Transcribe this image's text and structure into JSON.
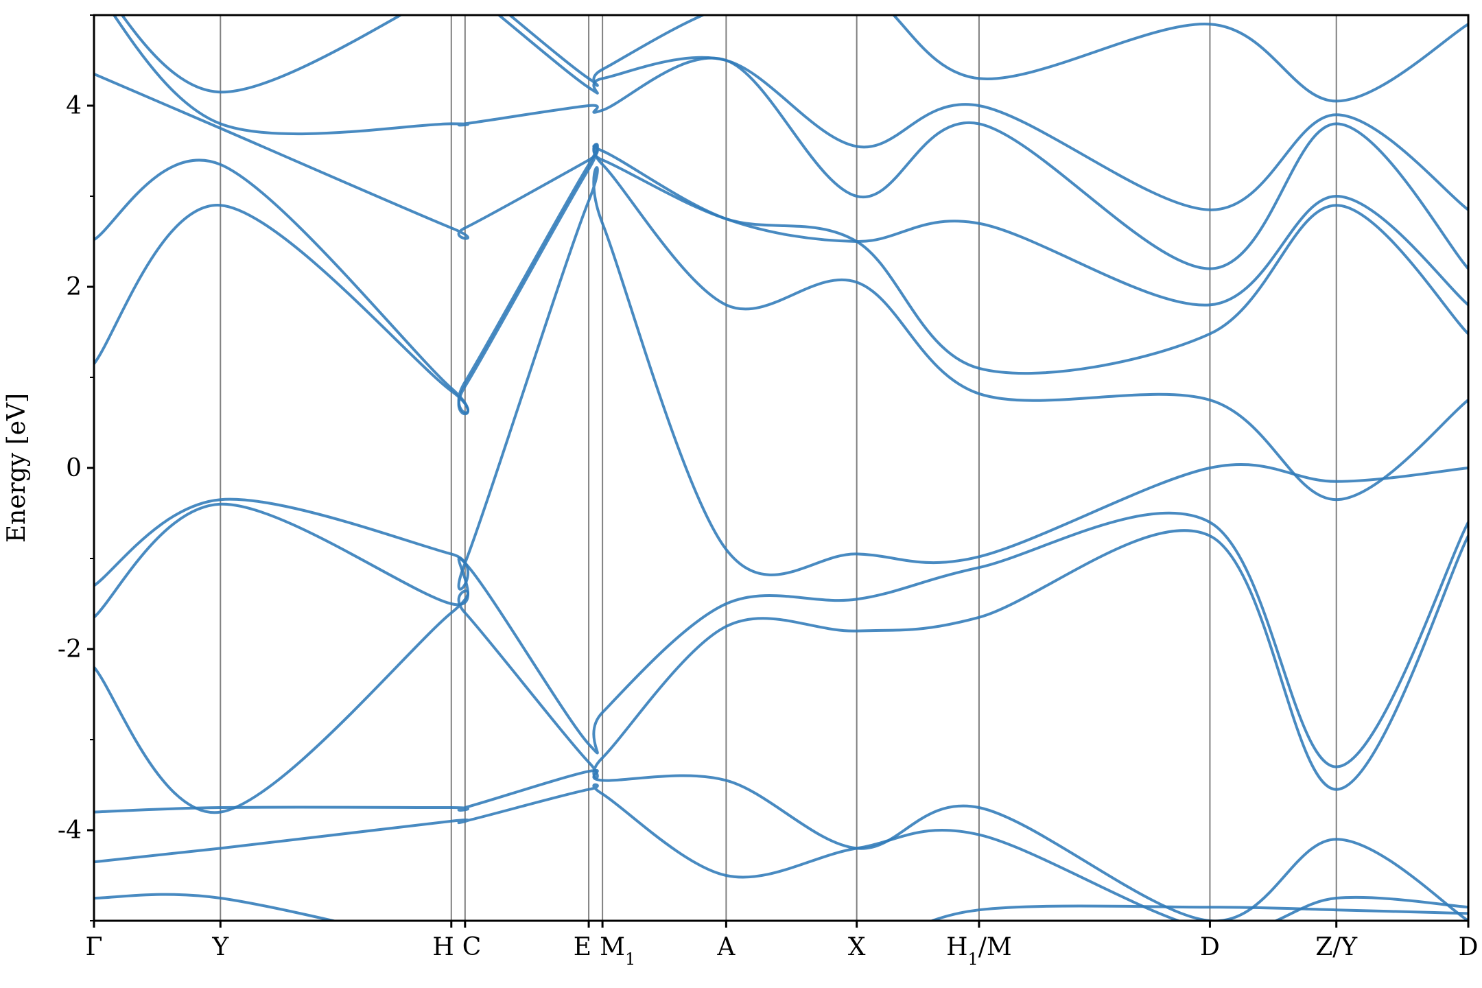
{
  "chart_data": {
    "type": "line",
    "title": "",
    "xlabel": "",
    "ylabel": "Energy [eV]",
    "ylim": [
      -5,
      5
    ],
    "yticks": [
      -4,
      -2,
      0,
      2,
      4
    ],
    "ytick_labels": [
      "-4",
      "-2",
      "0",
      "2",
      "4"
    ],
    "grid": false,
    "line_color": "#2f7ab8",
    "xlim": [
      0,
      10
    ],
    "high_symmetry_points": [
      {
        "label": "Γ",
        "x": 0.0,
        "align": "middle"
      },
      {
        "label": "Y",
        "x": 0.92,
        "align": "middle"
      },
      {
        "label": "H",
        "x": 2.6,
        "align": "end"
      },
      {
        "label": "C",
        "x": 2.7,
        "align": "start"
      },
      {
        "label": "E",
        "x": 3.6,
        "align": "end"
      },
      {
        "label": "M",
        "x": 3.7,
        "sub": "1",
        "align": "start"
      },
      {
        "label": "A",
        "x": 4.6,
        "align": "middle"
      },
      {
        "label": "X",
        "x": 5.55,
        "align": "middle"
      },
      {
        "label": "H",
        "x": 6.44,
        "sub": "1",
        "suffix": "/M",
        "align": "middle"
      },
      {
        "label": "D",
        "x": 8.12,
        "align": "middle"
      },
      {
        "label": "Z/Y",
        "x": 9.04,
        "align": "middle"
      },
      {
        "label": "D",
        "x": 10.0,
        "align": "middle"
      }
    ],
    "x": [
      0.0,
      0.92,
      2.6,
      2.7,
      3.6,
      3.7,
      4.6,
      5.55,
      6.44,
      8.12,
      9.04,
      10.0
    ],
    "series": [
      {
        "values": [
          -4.75,
          -4.75,
          -5.3,
          -5.3,
          -5.3,
          -5.3,
          -5.3,
          -5.3,
          -4.88,
          -4.85,
          -4.88,
          -4.92
        ]
      },
      {
        "values": [
          -4.35,
          -4.2,
          -3.9,
          -3.9,
          -3.55,
          -3.6,
          -4.5,
          -4.2,
          -4.05,
          -5.1,
          -4.75,
          -4.85
        ]
      },
      {
        "values": [
          -3.8,
          -3.75,
          -3.75,
          -3.75,
          -3.35,
          -3.45,
          -3.45,
          -4.2,
          -3.75,
          -5.0,
          -4.1,
          -5.0
        ]
      },
      {
        "values": [
          -2.2,
          -3.8,
          -1.6,
          -1.6,
          -3.25,
          -3.2,
          -1.75,
          -1.8,
          -1.65,
          -0.75,
          -3.55,
          -0.75
        ]
      },
      {
        "values": [
          -1.65,
          -0.4,
          -1.5,
          -1.05,
          -3.05,
          -2.7,
          -1.5,
          -1.45,
          -1.1,
          -0.6,
          -3.3,
          -0.6
        ]
      },
      {
        "values": [
          -1.3,
          -0.35,
          -0.95,
          -1.05,
          2.95,
          2.7,
          -0.9,
          -0.95,
          -0.98,
          0.0,
          -0.15,
          0.0
        ]
      },
      {
        "values": [
          1.15,
          2.9,
          0.85,
          0.9,
          3.3,
          3.35,
          1.8,
          2.05,
          0.82,
          0.75,
          -0.35,
          0.75
        ]
      },
      {
        "values": [
          2.52,
          3.35,
          0.88,
          0.95,
          3.35,
          3.4,
          2.75,
          2.5,
          1.1,
          1.48,
          2.9,
          1.48
        ]
      },
      {
        "values": [
          4.35,
          3.75,
          2.65,
          2.65,
          3.4,
          3.5,
          2.75,
          2.5,
          2.7,
          1.8,
          3.0,
          1.8
        ]
      },
      {
        "values": [
          5.3,
          3.8,
          3.8,
          3.8,
          4.0,
          3.95,
          4.5,
          3.0,
          3.8,
          2.2,
          3.8,
          2.2
        ]
      },
      {
        "values": [
          5.4,
          4.15,
          5.3,
          5.3,
          4.2,
          4.3,
          4.5,
          3.55,
          4.0,
          2.85,
          3.9,
          2.85
        ]
      },
      {
        "values": [
          5.5,
          5.4,
          5.4,
          5.4,
          4.3,
          4.4,
          5.1,
          5.3,
          4.3,
          4.9,
          4.05,
          4.9
        ]
      }
    ]
  }
}
